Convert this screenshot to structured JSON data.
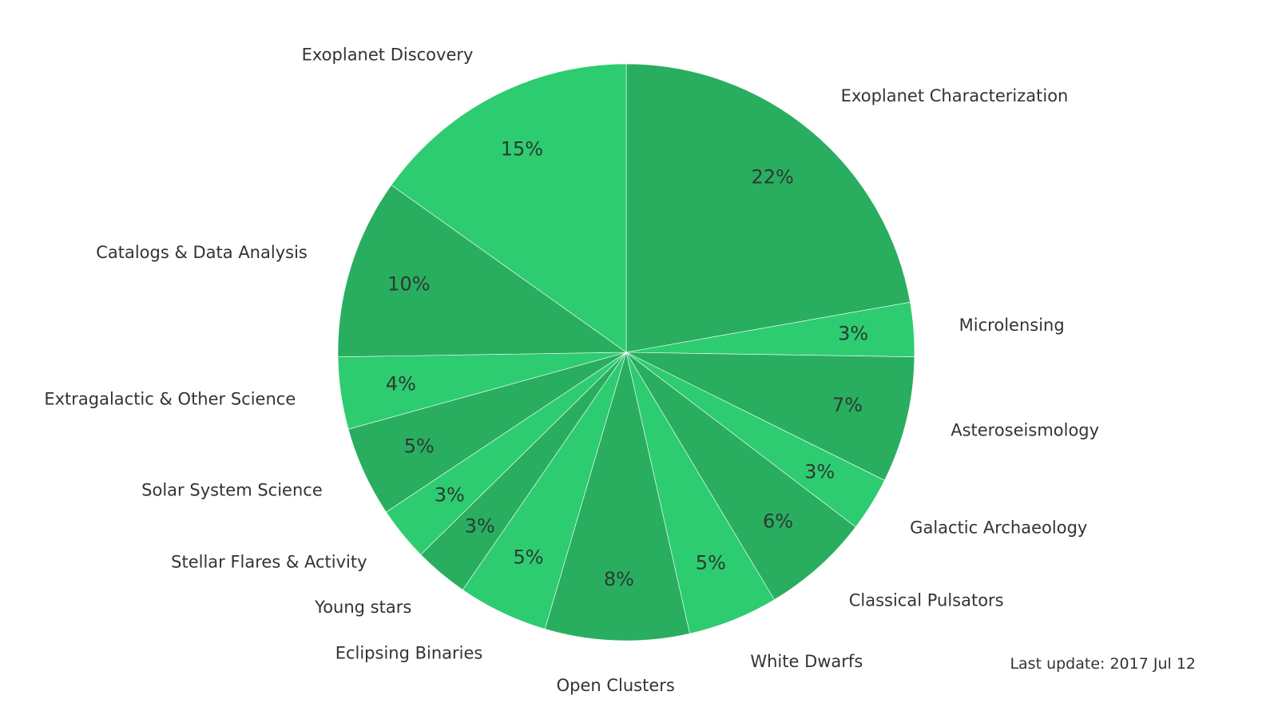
{
  "footer": {
    "last_update": "Last update: 2017 Jul 12"
  },
  "colors": {
    "dark": "#29ae60",
    "light": "#2ecc70",
    "text": "#333333"
  },
  "chart_data": {
    "type": "pie",
    "title": "",
    "direction": "clockwise",
    "start": "top",
    "legend": "none",
    "slices": [
      {
        "label": "Exoplanet Characterization",
        "value": 22,
        "display": "22%",
        "color": "#29ae60"
      },
      {
        "label": "Microlensing",
        "value": 3,
        "display": "3%",
        "color": "#2ecc70"
      },
      {
        "label": "Asteroseismology",
        "value": 7,
        "display": "7%",
        "color": "#29ae60"
      },
      {
        "label": "Galactic Archaeology",
        "value": 3,
        "display": "3%",
        "color": "#2ecc70"
      },
      {
        "label": "Classical Pulsators",
        "value": 6,
        "display": "6%",
        "color": "#29ae60"
      },
      {
        "label": "White Dwarfs",
        "value": 5,
        "display": "5%",
        "color": "#2ecc70"
      },
      {
        "label": "Open Clusters",
        "value": 8,
        "display": "8%",
        "color": "#29ae60"
      },
      {
        "label": "Eclipsing Binaries",
        "value": 5,
        "display": "5%",
        "color": "#2ecc70"
      },
      {
        "label": "Young stars",
        "value": 3,
        "display": "3%",
        "color": "#29ae60"
      },
      {
        "label": "Stellar Flares & Activity",
        "value": 3,
        "display": "3%",
        "color": "#2ecc70"
      },
      {
        "label": "Solar System Science",
        "value": 5,
        "display": "5%",
        "color": "#29ae60"
      },
      {
        "label": "Extragalactic & Other Science",
        "value": 4,
        "display": "4%",
        "color": "#2ecc70"
      },
      {
        "label": "Catalogs & Data Analysis",
        "value": 10,
        "display": "10%",
        "color": "#29ae60"
      },
      {
        "label": "Exoplanet Discovery",
        "value": 15,
        "display": "15%",
        "color": "#2ecc70"
      }
    ]
  }
}
